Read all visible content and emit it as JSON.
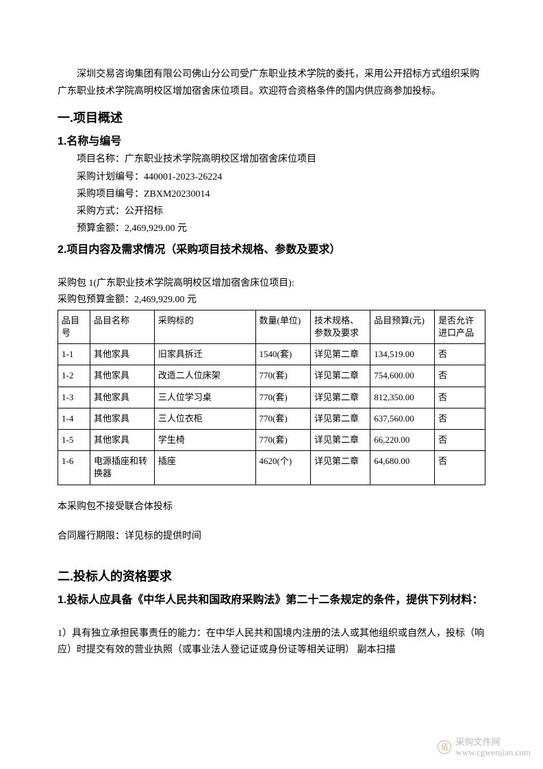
{
  "intro": "深圳交易咨询集团有限公司佛山分公司受广东职业技术学院的委托，采用公开招标方式组织采购广东职业技术学院高明校区增加宿舍床位项目。欢迎符合资格条件的国内供应商参加投标。",
  "section1": {
    "title": "一.项目概述",
    "sub1": {
      "heading": "1.名称与编号",
      "lines": {
        "name_label": "项目名称：广东职业技术学院高明校区增加宿舍床位项目",
        "plan_no": "采购计划编号：440001-2023-26224",
        "proj_no": "采购项目编号：ZBXM20230014",
        "method": "采购方式：公开招标",
        "budget": "预算金额：2,469,929.00 元"
      }
    },
    "sub2": {
      "heading": "2.项目内容及需求情况（采购项目技术规格、参数及要求）",
      "pkg_title": "采购包 1(广东职业技术学院高明校区增加宿舍床位项目):",
      "pkg_budget": "采购包预算金额：2,469,929.00 元",
      "table": {
        "headers": [
          "品目号",
          "品目名称",
          "采购标的",
          "数量(单位)",
          "技术规格、参数及要求",
          "品目预算(元)",
          "是否允许进口产品"
        ],
        "rows": [
          [
            "1-1",
            "其他家具",
            "旧家具拆迁",
            "1540(套)",
            "详见第二章",
            "134,519.00",
            "否"
          ],
          [
            "1-2",
            "其他家具",
            "改造二人位床架",
            "770(套)",
            "详见第二章",
            "754,600.00",
            "否"
          ],
          [
            "1-3",
            "其他家具",
            "三人位学习桌",
            "770(套)",
            "详见第二章",
            "812,350.00",
            "否"
          ],
          [
            "1-4",
            "其他家具",
            "三人位衣柜",
            "770(套)",
            "详见第二章",
            "637,560.00",
            "否"
          ],
          [
            "1-5",
            "其他家具",
            "学生椅",
            "770(套)",
            "详见第二章",
            "66,220.00",
            "否"
          ],
          [
            "1-6",
            "电源插座和转换器",
            "插座",
            "4620(个)",
            "详见第二章",
            "64,680.00",
            "否"
          ]
        ]
      },
      "note1": "本采购包不接受联合体投标",
      "note2": "合同履行期限：详见标的提供时间"
    }
  },
  "section2": {
    "title": "二.投标人的资格要求",
    "sub1": {
      "heading": "1.投标人应具备《中华人民共和国政府采购法》第二十二条规定的条件，提供下列材料：",
      "item1": "1）具有独立承担民事责任的能力：在中华人民共和国境内注册的法人或其他组织或自然人，投标（响应）时提交有效的营业执照（或事业法人登记证或身份证等相关证明） 副本扫描"
    }
  },
  "watermark": {
    "icon": "佰",
    "line1": "采购文件网",
    "line2": "www.cgwenjian.com"
  },
  "styling": {
    "page_bg": "#ffffff",
    "text_color": "#000000",
    "border_color": "#000000",
    "watermark_color": "#b8b8b8",
    "wm_icon_color": "#d4b27a",
    "body_font": "SimSun",
    "heading_font": "SimHei",
    "body_fontsize": 14,
    "h1_fontsize": 18,
    "h2_fontsize": 16,
    "table_fontsize": 13,
    "line_height": 1.8
  }
}
